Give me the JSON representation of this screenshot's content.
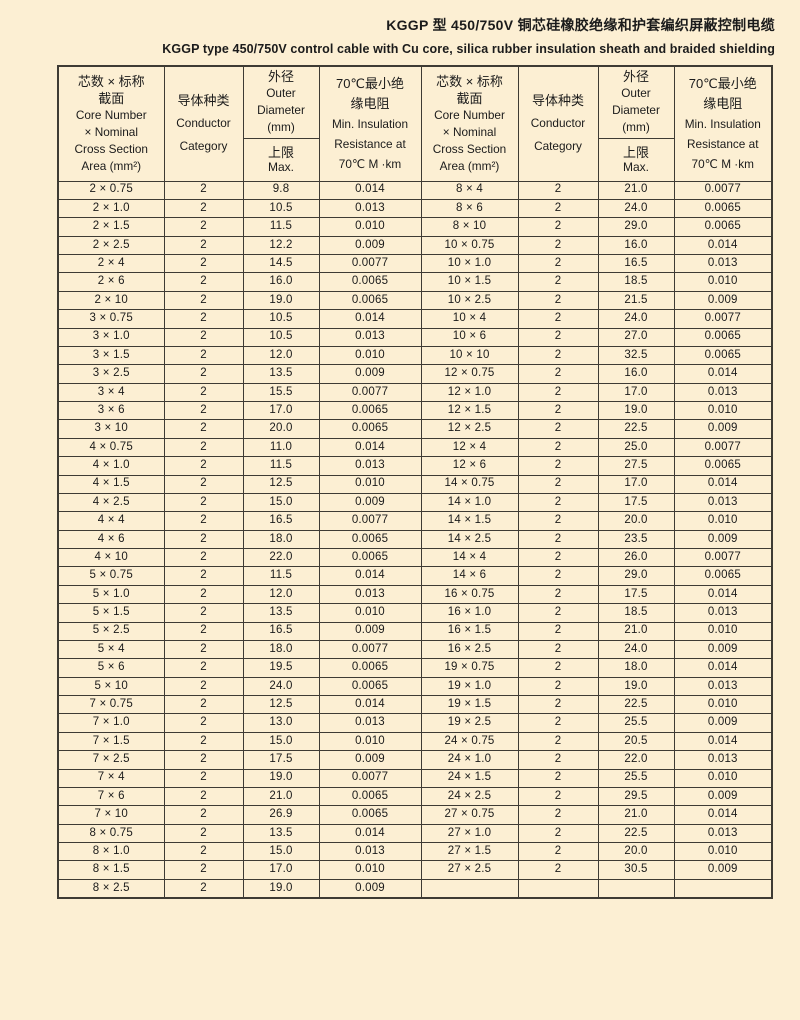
{
  "title": {
    "zh": "KGGP 型 450/750V 铜芯硅橡胶绝缘和护套编织屏蔽控制电缆",
    "en": "KGGP type 450/750V control cable with Cu core, silica rubber insulation sheath and braided shielding"
  },
  "colors": {
    "page_background": "#fcefd3",
    "table_border": "#3e3b34",
    "text": "#1b1b1b"
  },
  "table": {
    "header": {
      "core": {
        "lines": [
          "芯数 × 标称",
          "截面",
          "Core Number",
          "× Nominal",
          "Cross Section",
          "Area (mm²)"
        ]
      },
      "conductor": {
        "lines": [
          "导体种类",
          "Conductor",
          "Category"
        ]
      },
      "diameter": {
        "top_lines": [
          "外径",
          "Outer",
          "Diameter",
          "(mm)"
        ],
        "bottom_lines": [
          "上限",
          "Max."
        ]
      },
      "resistance": {
        "lines": [
          "70℃最小绝",
          "缘电阻",
          "Min. Insulation",
          "Resistance at",
          "70℃ M ·km"
        ]
      }
    },
    "rows_left": [
      [
        "2 × 0.75",
        "2",
        "9.8",
        "0.014"
      ],
      [
        "2 × 1.0",
        "2",
        "10.5",
        "0.013"
      ],
      [
        "2 × 1.5",
        "2",
        "11.5",
        "0.010"
      ],
      [
        "2 × 2.5",
        "2",
        "12.2",
        "0.009"
      ],
      [
        "2 × 4",
        "2",
        "14.5",
        "0.0077"
      ],
      [
        "2 × 6",
        "2",
        "16.0",
        "0.0065"
      ],
      [
        "2 × 10",
        "2",
        "19.0",
        "0.0065"
      ],
      [
        "3 × 0.75",
        "2",
        "10.5",
        "0.014"
      ],
      [
        "3 × 1.0",
        "2",
        "10.5",
        "0.013"
      ],
      [
        "3 × 1.5",
        "2",
        "12.0",
        "0.010"
      ],
      [
        "3 × 2.5",
        "2",
        "13.5",
        "0.009"
      ],
      [
        "3 × 4",
        "2",
        "15.5",
        "0.0077"
      ],
      [
        "3 × 6",
        "2",
        "17.0",
        "0.0065"
      ],
      [
        "3 × 10",
        "2",
        "20.0",
        "0.0065"
      ],
      [
        "4 × 0.75",
        "2",
        "11.0",
        "0.014"
      ],
      [
        "4 × 1.0",
        "2",
        "11.5",
        "0.013"
      ],
      [
        "4 × 1.5",
        "2",
        "12.5",
        "0.010"
      ],
      [
        "4 × 2.5",
        "2",
        "15.0",
        "0.009"
      ],
      [
        "4 × 4",
        "2",
        "16.5",
        "0.0077"
      ],
      [
        "4 × 6",
        "2",
        "18.0",
        "0.0065"
      ],
      [
        "4 × 10",
        "2",
        "22.0",
        "0.0065"
      ],
      [
        "5 × 0.75",
        "2",
        "11.5",
        "0.014"
      ],
      [
        "5 × 1.0",
        "2",
        "12.0",
        "0.013"
      ],
      [
        "5 × 1.5",
        "2",
        "13.5",
        "0.010"
      ],
      [
        "5 × 2.5",
        "2",
        "16.5",
        "0.009"
      ],
      [
        "5 × 4",
        "2",
        "18.0",
        "0.0077"
      ],
      [
        "5 × 6",
        "2",
        "19.5",
        "0.0065"
      ],
      [
        "5 × 10",
        "2",
        "24.0",
        "0.0065"
      ],
      [
        "7 × 0.75",
        "2",
        "12.5",
        "0.014"
      ],
      [
        "7 × 1.0",
        "2",
        "13.0",
        "0.013"
      ],
      [
        "7 × 1.5",
        "2",
        "15.0",
        "0.010"
      ],
      [
        "7 × 2.5",
        "2",
        "17.5",
        "0.009"
      ],
      [
        "7 × 4",
        "2",
        "19.0",
        "0.0077"
      ],
      [
        "7 × 6",
        "2",
        "21.0",
        "0.0065"
      ],
      [
        "7 × 10",
        "2",
        "26.9",
        "0.0065"
      ],
      [
        "8 × 0.75",
        "2",
        "13.5",
        "0.014"
      ],
      [
        "8 × 1.0",
        "2",
        "15.0",
        "0.013"
      ],
      [
        "8 × 1.5",
        "2",
        "17.0",
        "0.010"
      ],
      [
        "8 × 2.5",
        "2",
        "19.0",
        "0.009"
      ]
    ],
    "rows_right": [
      [
        "8 × 4",
        "2",
        "21.0",
        "0.0077"
      ],
      [
        "8 × 6",
        "2",
        "24.0",
        "0.0065"
      ],
      [
        "8 × 10",
        "2",
        "29.0",
        "0.0065"
      ],
      [
        "10 × 0.75",
        "2",
        "16.0",
        "0.014"
      ],
      [
        "10 × 1.0",
        "2",
        "16.5",
        "0.013"
      ],
      [
        "10 × 1.5",
        "2",
        "18.5",
        "0.010"
      ],
      [
        "10 × 2.5",
        "2",
        "21.5",
        "0.009"
      ],
      [
        "10 × 4",
        "2",
        "24.0",
        "0.0077"
      ],
      [
        "10 × 6",
        "2",
        "27.0",
        "0.0065"
      ],
      [
        "10 × 10",
        "2",
        "32.5",
        "0.0065"
      ],
      [
        "12 × 0.75",
        "2",
        "16.0",
        "0.014"
      ],
      [
        "12 × 1.0",
        "2",
        "17.0",
        "0.013"
      ],
      [
        "12 × 1.5",
        "2",
        "19.0",
        "0.010"
      ],
      [
        "12 × 2.5",
        "2",
        "22.5",
        "0.009"
      ],
      [
        "12 × 4",
        "2",
        "25.0",
        "0.0077"
      ],
      [
        "12 × 6",
        "2",
        "27.5",
        "0.0065"
      ],
      [
        "14 × 0.75",
        "2",
        "17.0",
        "0.014"
      ],
      [
        "14 × 1.0",
        "2",
        "17.5",
        "0.013"
      ],
      [
        "14 × 1.5",
        "2",
        "20.0",
        "0.010"
      ],
      [
        "14 × 2.5",
        "2",
        "23.5",
        "0.009"
      ],
      [
        "14 × 4",
        "2",
        "26.0",
        "0.0077"
      ],
      [
        "14 × 6",
        "2",
        "29.0",
        "0.0065"
      ],
      [
        "16 × 0.75",
        "2",
        "17.5",
        "0.014"
      ],
      [
        "16 × 1.0",
        "2",
        "18.5",
        "0.013"
      ],
      [
        "16 × 1.5",
        "2",
        "21.0",
        "0.010"
      ],
      [
        "16 × 2.5",
        "2",
        "24.0",
        "0.009"
      ],
      [
        "19 × 0.75",
        "2",
        "18.0",
        "0.014"
      ],
      [
        "19 × 1.0",
        "2",
        "19.0",
        "0.013"
      ],
      [
        "19 × 1.5",
        "2",
        "22.5",
        "0.010"
      ],
      [
        "19 × 2.5",
        "2",
        "25.5",
        "0.009"
      ],
      [
        "24 × 0.75",
        "2",
        "20.5",
        "0.014"
      ],
      [
        "24 × 1.0",
        "2",
        "22.0",
        "0.013"
      ],
      [
        "24 × 1.5",
        "2",
        "25.5",
        "0.010"
      ],
      [
        "24 × 2.5",
        "2",
        "29.5",
        "0.009"
      ],
      [
        "27 × 0.75",
        "2",
        "21.0",
        "0.014"
      ],
      [
        "27 × 1.0",
        "2",
        "22.5",
        "0.013"
      ],
      [
        "27 × 1.5",
        "2",
        "20.0",
        "0.010"
      ],
      [
        "27 × 2.5",
        "2",
        "30.5",
        "0.009"
      ],
      [
        "",
        "",
        "",
        ""
      ]
    ]
  }
}
